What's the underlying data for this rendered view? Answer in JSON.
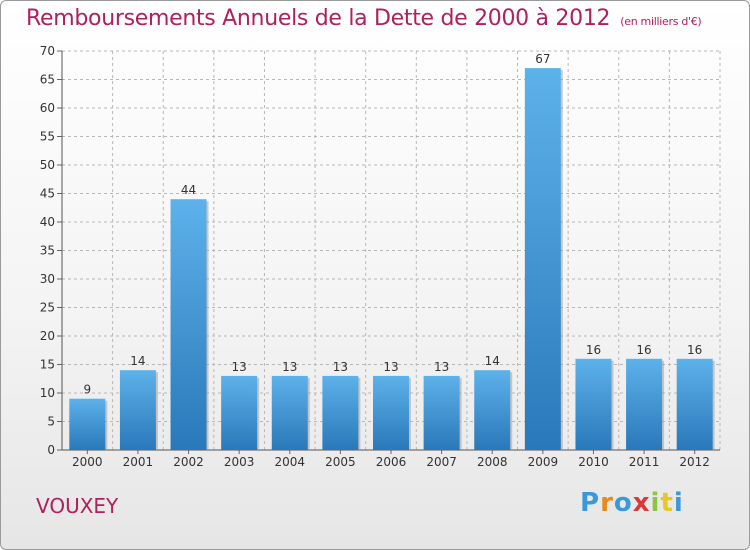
{
  "header": {
    "title": "Remboursements Annuels de la Dette de 2000 à 2012",
    "subtitle": "(en milliers d'€)"
  },
  "footer": {
    "commune": "VOUXEY",
    "logo_text": "Proxiti"
  },
  "colors": {
    "title": "#b0205e",
    "bar_top": "#5db2ea",
    "bar_bottom": "#2a78b9",
    "grid": "#b8b8b8"
  },
  "chart_data": {
    "type": "bar",
    "title": "Remboursements Annuels de la Dette de 2000 à 2012",
    "subtitle": "(en milliers d'€)",
    "categories": [
      "2000",
      "2001",
      "2002",
      "2003",
      "2004",
      "2005",
      "2006",
      "2007",
      "2008",
      "2009",
      "2010",
      "2011",
      "2012"
    ],
    "values": [
      9,
      14,
      44,
      13,
      13,
      13,
      13,
      13,
      14,
      67,
      16,
      16,
      16
    ],
    "ylim": [
      0,
      70
    ],
    "yticks": [
      0,
      5,
      10,
      15,
      20,
      25,
      30,
      35,
      40,
      45,
      50,
      55,
      60,
      65,
      70
    ],
    "grid": true,
    "legend": "none",
    "data_labels": true
  }
}
